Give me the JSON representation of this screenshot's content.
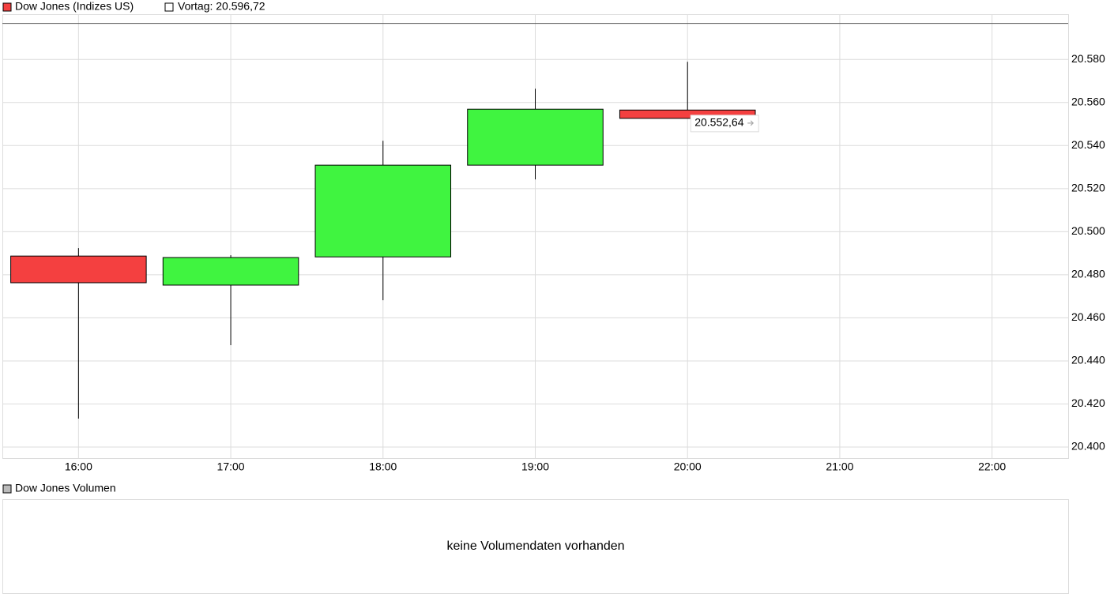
{
  "chart_data": {
    "type": "candlestick",
    "series_name": "Dow Jones (Indizes US)",
    "reference_line": {
      "label": "Vortag: 20.596,72",
      "value": 20596.72,
      "color": "#555555"
    },
    "categories": [
      "16:00",
      "17:00",
      "18:00",
      "19:00",
      "20:00",
      "21:00",
      "22:00"
    ],
    "open": [
      20488.7,
      20475.2,
      20488.3,
      20530.9,
      20556.5,
      null,
      null
    ],
    "high": [
      20492.4,
      20489.1,
      20542.2,
      20566.4,
      20578.9,
      null,
      null
    ],
    "low": [
      20413.2,
      20447.3,
      20468.2,
      20524.3,
      20552.64,
      null,
      null
    ],
    "close": [
      20476.3,
      20488.0,
      20530.9,
      20556.9,
      20552.64,
      null,
      null
    ],
    "up_color": "#40f440",
    "down_color": "#f44040",
    "last_price": {
      "value": 20552.64,
      "label": "20.552,64"
    },
    "ylim": [
      20394.5,
      20601
    ],
    "yticks": [
      {
        "value": 20400,
        "label": "20.400"
      },
      {
        "value": 20420,
        "label": "20.420"
      },
      {
        "value": 20440,
        "label": "20.440"
      },
      {
        "value": 20460,
        "label": "20.460"
      },
      {
        "value": 20480,
        "label": "20.480"
      },
      {
        "value": 20500,
        "label": "20.500"
      },
      {
        "value": 20520,
        "label": "20.520"
      },
      {
        "value": 20540,
        "label": "20.540"
      },
      {
        "value": 20560,
        "label": "20.560"
      },
      {
        "value": 20580,
        "label": "20.580"
      }
    ],
    "grid": true,
    "volume_panel": {
      "title": "Dow Jones Volumen",
      "message": "keine Volumendaten vorhanden"
    }
  }
}
